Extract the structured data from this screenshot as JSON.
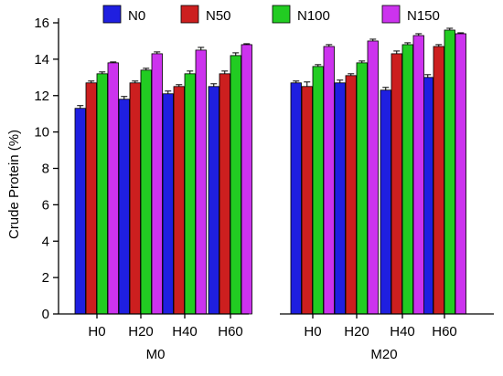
{
  "chart_data": {
    "type": "bar",
    "title": "",
    "ylabel": "Crude Protein (%)",
    "xlabel": "",
    "ylim": [
      0,
      16
    ],
    "yticks": [
      0,
      2,
      4,
      6,
      8,
      10,
      12,
      14,
      16
    ],
    "grid": false,
    "legend_position": "top",
    "groups": [
      "M0",
      "M20"
    ],
    "categories": [
      "H0",
      "H20",
      "H40",
      "H60"
    ],
    "series": [
      {
        "name": "N0",
        "color": "#1f1fe0",
        "values": [
          [
            11.3,
            11.8,
            12.1,
            12.5
          ],
          [
            12.7,
            12.7,
            12.3,
            13.0
          ]
        ],
        "errors": [
          [
            0.15,
            0.15,
            0.15,
            0.15
          ],
          [
            0.1,
            0.15,
            0.15,
            0.15
          ]
        ]
      },
      {
        "name": "N50",
        "color": "#cc1f1f",
        "values": [
          [
            12.7,
            12.7,
            12.5,
            13.2
          ],
          [
            12.5,
            13.1,
            14.3,
            14.7
          ]
        ],
        "errors": [
          [
            0.1,
            0.1,
            0.1,
            0.15
          ],
          [
            0.25,
            0.1,
            0.15,
            0.1
          ]
        ]
      },
      {
        "name": "N100",
        "color": "#22cc22",
        "values": [
          [
            13.2,
            13.4,
            13.2,
            14.2
          ],
          [
            13.6,
            13.8,
            14.8,
            15.6
          ]
        ],
        "errors": [
          [
            0.1,
            0.1,
            0.15,
            0.15
          ],
          [
            0.1,
            0.1,
            0.1,
            0.1
          ]
        ]
      },
      {
        "name": "N150",
        "color": "#cc33ee",
        "values": [
          [
            13.8,
            14.3,
            14.5,
            14.8
          ],
          [
            14.7,
            15.0,
            15.3,
            15.4
          ]
        ],
        "errors": [
          [
            0.05,
            0.1,
            0.15,
            0.05
          ],
          [
            0.1,
            0.1,
            0.1,
            0.05
          ]
        ]
      }
    ]
  }
}
